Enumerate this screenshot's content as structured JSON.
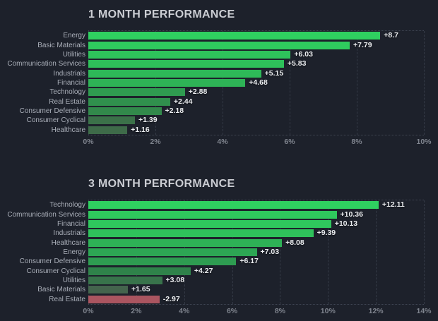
{
  "colors": {
    "background": "#1d212b",
    "title": "#cbcdd3",
    "category_label": "#a9aeb8",
    "value_label": "#eceef1",
    "axis_tick": "#7f848e",
    "gridline": "#343a46",
    "plot_border": "#3e4452",
    "positive_bright": "#2fd060",
    "negative": "#aa5560"
  },
  "chart_data": [
    {
      "type": "bar",
      "orientation": "horizontal",
      "title": "1 MONTH PERFORMANCE",
      "xlabel": "",
      "ylabel": "",
      "xlim": [
        0,
        10
      ],
      "grid": true,
      "legend": "none",
      "tick_values": [
        0,
        2,
        4,
        6,
        8,
        10
      ],
      "x_ticks": [
        "0%",
        "2%",
        "4%",
        "6%",
        "8%",
        "10%"
      ],
      "categories": [
        "Energy",
        "Basic Materials",
        "Utilities",
        "Communication Services",
        "Industrials",
        "Financial",
        "Technology",
        "Real Estate",
        "Consumer Defensive",
        "Consumer Cyclical",
        "Healthcare"
      ],
      "values": [
        8.7,
        7.79,
        6.03,
        5.83,
        5.15,
        4.68,
        2.88,
        2.44,
        2.18,
        1.39,
        1.16
      ],
      "value_labels": [
        "+8.7",
        "+7.79",
        "+6.03",
        "+5.83",
        "+5.15",
        "+4.68",
        "+2.88",
        "+2.44",
        "+2.18",
        "+1.39",
        "+1.16"
      ],
      "bar_colors": [
        "#2fd060",
        "#2fcb5e",
        "#2ec25b",
        "#2ec05a",
        "#2eb958",
        "#2eb356",
        "#2f9b50",
        "#30904d",
        "#32894b",
        "#3b7149",
        "#3e6b49"
      ]
    },
    {
      "type": "bar",
      "orientation": "horizontal",
      "title": "3 MONTH PERFORMANCE",
      "xlabel": "",
      "ylabel": "",
      "xlim": [
        0,
        14
      ],
      "grid": true,
      "legend": "none",
      "tick_values": [
        0,
        2,
        4,
        6,
        8,
        10,
        12,
        14
      ],
      "x_ticks": [
        "0%",
        "2%",
        "4%",
        "6%",
        "8%",
        "10%",
        "12%",
        "14%"
      ],
      "categories": [
        "Technology",
        "Communication Services",
        "Financial",
        "Industrials",
        "Healthcare",
        "Energy",
        "Consumer Defensive",
        "Consumer Cyclical",
        "Utilities",
        "Basic Materials",
        "Real Estate"
      ],
      "values": [
        12.11,
        10.36,
        10.13,
        9.39,
        8.08,
        7.03,
        6.17,
        4.27,
        3.08,
        1.65,
        -2.97
      ],
      "value_labels": [
        "+12.11",
        "+10.36",
        "+10.13",
        "+9.39",
        "+8.08",
        "+7.03",
        "+6.17",
        "+4.27",
        "+3.08",
        "+1.65",
        "-2.97"
      ],
      "bar_colors": [
        "#2fd060",
        "#2fc85d",
        "#2fc75d",
        "#2fc15b",
        "#2eb156",
        "#2da654",
        "#2e9c51",
        "#2f824a",
        "#38734b",
        "#44644d",
        "#aa5560"
      ]
    }
  ]
}
